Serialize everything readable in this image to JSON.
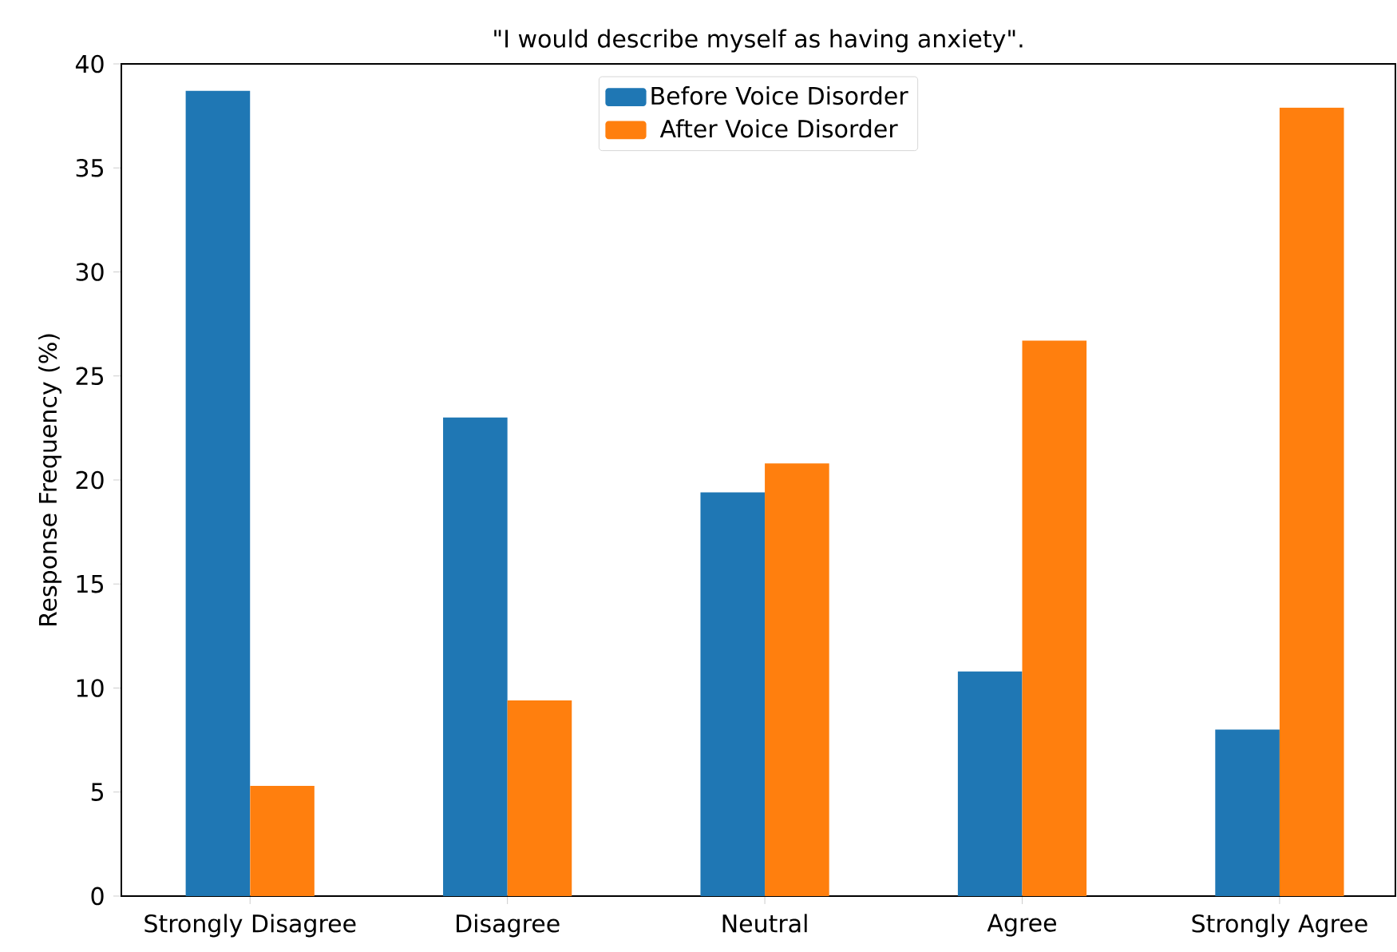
{
  "chart_data": {
    "type": "bar",
    "title": "\"I would describe myself as having anxiety\".",
    "ylabel": "Response Frequency (%)",
    "categories": [
      "Strongly Disagree",
      "Disagree",
      "Neutral",
      "Agree",
      "Strongly Agree"
    ],
    "series": [
      {
        "name": "Before Voice Disorder",
        "color": "#1f77b4",
        "values": [
          38.7,
          23.0,
          19.4,
          10.8,
          8.0
        ]
      },
      {
        "name": "After Voice Disorder",
        "color": "#ff7f0e",
        "values": [
          5.3,
          9.4,
          20.8,
          26.7,
          37.9
        ]
      }
    ],
    "ylim": [
      0,
      40
    ],
    "yticks": [
      0,
      5,
      10,
      15,
      20,
      25,
      30,
      35,
      40
    ],
    "grid": false,
    "legend": "top"
  }
}
